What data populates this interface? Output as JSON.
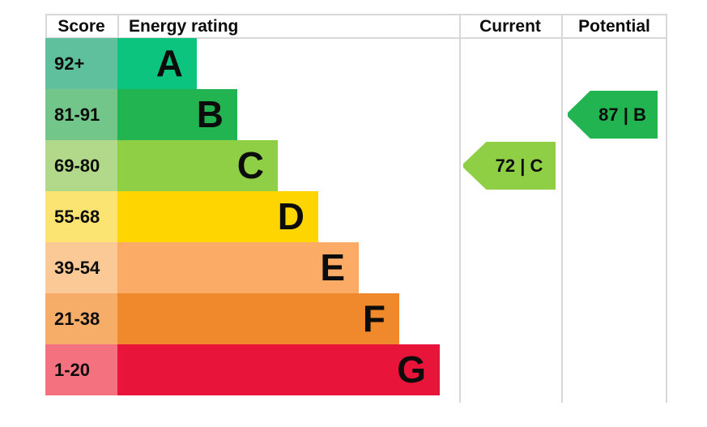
{
  "header": {
    "score": "Score",
    "energy_rating": "Energy rating",
    "current": "Current",
    "potential": "Potential"
  },
  "bands": [
    {
      "range": "92+",
      "letter": "A",
      "bar_color": "#0cc47e",
      "range_color": "#5ec09c"
    },
    {
      "range": "81-91",
      "letter": "B",
      "bar_color": "#22b450",
      "range_color": "#72c689"
    },
    {
      "range": "69-80",
      "letter": "C",
      "bar_color": "#8ecf45",
      "range_color": "#b2d989"
    },
    {
      "range": "55-68",
      "letter": "D",
      "bar_color": "#ffd500",
      "range_color": "#fce472"
    },
    {
      "range": "39-54",
      "letter": "E",
      "bar_color": "#fcab67",
      "range_color": "#fbc995"
    },
    {
      "range": "21-38",
      "letter": "F",
      "bar_color": "#f0882c",
      "range_color": "#f6ad68"
    },
    {
      "range": "1-20",
      "letter": "G",
      "bar_color": "#e81439",
      "range_color": "#f4717f"
    }
  ],
  "current": {
    "label": "72 | C",
    "value": 72,
    "band": "C",
    "band_index": 2,
    "color": "#8ecf45"
  },
  "potential": {
    "label": "87 | B",
    "value": 87,
    "band": "B",
    "band_index": 1,
    "color": "#22b450"
  },
  "chart_data": {
    "type": "bar",
    "orientation": "horizontal",
    "title": "Energy rating",
    "columns": [
      "Score",
      "Energy rating",
      "Current",
      "Potential"
    ],
    "categories": [
      "A",
      "B",
      "C",
      "D",
      "E",
      "F",
      "G"
    ],
    "score_ranges": [
      "92+",
      "81-91",
      "69-80",
      "55-68",
      "39-54",
      "21-38",
      "1-20"
    ],
    "bar_lengths_relative": [
      1,
      1.5,
      2,
      2.5,
      3,
      3.5,
      4
    ],
    "markers": [
      {
        "name": "Current",
        "value": 72,
        "band": "C"
      },
      {
        "name": "Potential",
        "value": 87,
        "band": "B"
      }
    ],
    "legend_position": "none",
    "grid": false
  }
}
